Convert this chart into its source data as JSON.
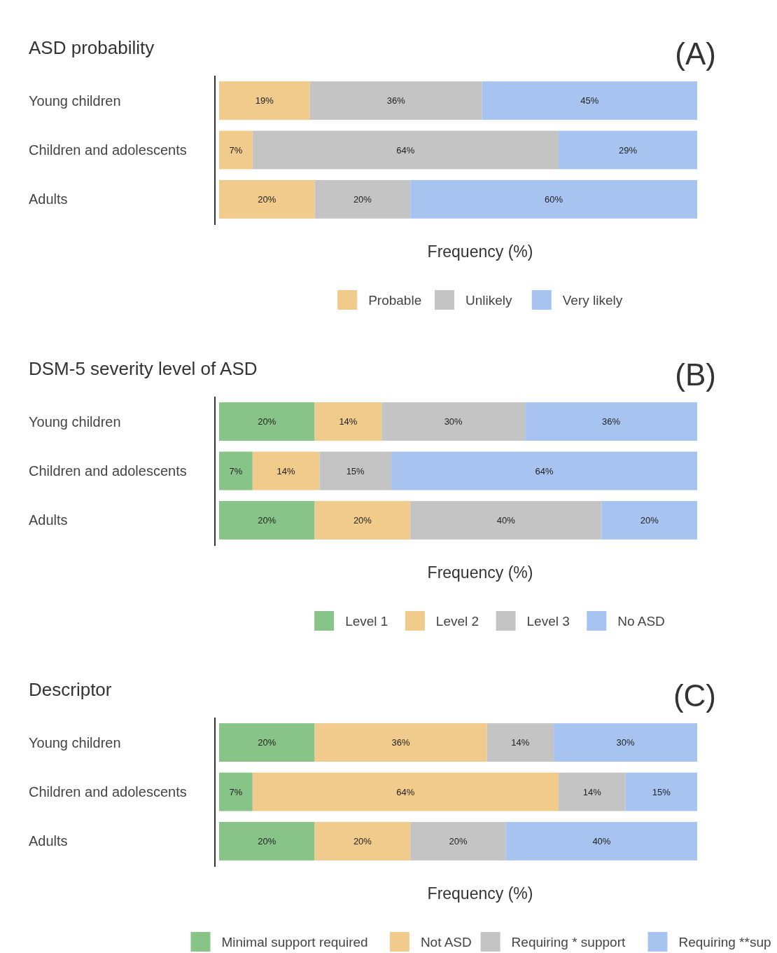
{
  "chart_data": [
    {
      "type": "bar",
      "orientation": "horizontal",
      "stacked": true,
      "title": "ASD probability",
      "annotations": [
        "(A)"
      ],
      "xlabel": "Frequency (%)",
      "categories": [
        "Young children",
        "Children and adolescents",
        "Adults"
      ],
      "xlim": [
        0,
        100
      ],
      "tick_labels": "y",
      "legend": "bottom",
      "series": [
        {
          "name": "Probable",
          "color": "#f0cb8c",
          "values": [
            19,
            7,
            20
          ],
          "value_labels": [
            "19%",
            "7%",
            "20%"
          ]
        },
        {
          "name": "Unlikely",
          "color": "#c4c4c4",
          "values": [
            36,
            64,
            20
          ],
          "value_labels": [
            "36%",
            "64%",
            "20%"
          ]
        },
        {
          "name": "Very likely",
          "color": "#a7c4f0",
          "values": [
            45,
            29,
            60
          ],
          "value_labels": [
            "45%",
            "29%",
            "60%"
          ]
        }
      ]
    },
    {
      "type": "bar",
      "orientation": "horizontal",
      "stacked": true,
      "title": "DSM-5 severity level of ASD",
      "annotations": [
        "(B)"
      ],
      "xlabel": "Frequency (%)",
      "categories": [
        "Young children",
        "Children and adolescents",
        "Adults"
      ],
      "xlim": [
        0,
        100
      ],
      "tick_labels": "y",
      "legend": "bottom",
      "series": [
        {
          "name": "Level 1",
          "color": "#88c488",
          "values": [
            20,
            7,
            20
          ],
          "value_labels": [
            "20%",
            "7%",
            "20%"
          ]
        },
        {
          "name": "Level 2",
          "color": "#f0cb8c",
          "values": [
            14,
            14,
            20
          ],
          "value_labels": [
            "14%",
            "14%",
            "20%"
          ]
        },
        {
          "name": "Level 3",
          "color": "#c4c4c4",
          "values": [
            30,
            15,
            40
          ],
          "value_labels": [
            "30%",
            "15%",
            "40%"
          ]
        },
        {
          "name": "No ASD",
          "color": "#a7c4f0",
          "values": [
            36,
            64,
            20
          ],
          "value_labels": [
            "36%",
            "64%",
            "20%"
          ]
        }
      ]
    },
    {
      "type": "bar",
      "orientation": "horizontal",
      "stacked": true,
      "title": "Descriptor",
      "annotations": [
        "(C)"
      ],
      "xlabel": "Frequency (%)",
      "categories": [
        "Young children",
        "Children and adolescents",
        "Adults"
      ],
      "xlim": [
        0,
        100
      ],
      "tick_labels": "y",
      "legend": "bottom",
      "series": [
        {
          "name": "Minimal support required",
          "color": "#88c488",
          "values": [
            20,
            7,
            20
          ],
          "value_labels": [
            "20%",
            "7%",
            "20%"
          ]
        },
        {
          "name": "Not ASD",
          "color": "#f0cb8c",
          "values": [
            36,
            64,
            20
          ],
          "value_labels": [
            "36%",
            "64%",
            "20%"
          ]
        },
        {
          "name": "Requiring * support",
          "color": "#c4c4c4",
          "values": [
            14,
            14,
            20
          ],
          "value_labels": [
            "14%",
            "14%",
            "20%"
          ]
        },
        {
          "name": "Requiring **sup",
          "color": "#a7c4f0",
          "values": [
            30,
            15,
            40
          ],
          "value_labels": [
            "30%",
            "15%",
            "40%"
          ]
        }
      ]
    }
  ]
}
